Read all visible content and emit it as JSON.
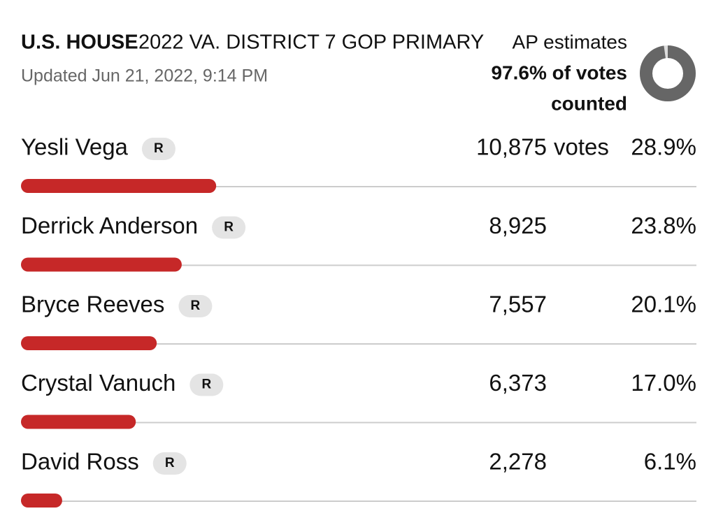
{
  "header": {
    "office": "U.S. HOUSE",
    "race": "2022 VA. DISTRICT 7 GOP PRIMARY",
    "updated": "Updated Jun 21, 2022, 9:14 PM"
  },
  "estimate": {
    "source": "AP estimates",
    "line1": "97.6% of votes",
    "line2": "counted",
    "counted_pct": 97.6
  },
  "candidates": [
    {
      "name": "Yesli Vega",
      "party": "R",
      "votes": "10,875",
      "votes_suffix": "votes",
      "pct": 28.9,
      "pct_label": "28.9%"
    },
    {
      "name": "Derrick Anderson",
      "party": "R",
      "votes": "8,925",
      "pct": 23.8,
      "pct_label": "23.8%"
    },
    {
      "name": "Bryce Reeves",
      "party": "R",
      "votes": "7,557",
      "pct": 20.1,
      "pct_label": "20.1%"
    },
    {
      "name": "Crystal Vanuch",
      "party": "R",
      "votes": "6,373",
      "pct": 17.0,
      "pct_label": "17.0%"
    },
    {
      "name": "David Ross",
      "party": "R",
      "votes": "2,278",
      "pct": 6.1,
      "pct_label": "6.1%"
    }
  ]
}
